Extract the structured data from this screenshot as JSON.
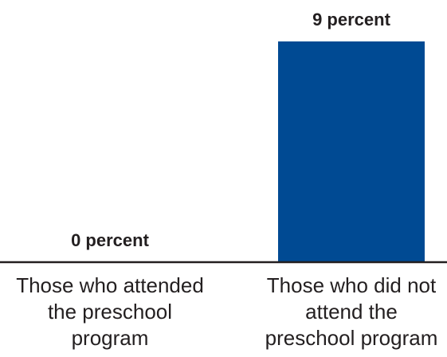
{
  "chart_data": {
    "type": "bar",
    "categories": [
      [
        "Those who attended",
        "the preschool",
        "program"
      ],
      [
        "Those who did not",
        "attend the",
        "preschool program"
      ]
    ],
    "values": [
      0,
      9
    ],
    "value_labels": [
      "0 percent",
      "9 percent"
    ],
    "unit": "percent",
    "ylim": [
      0,
      9
    ],
    "grid": false,
    "legend": "none",
    "colors": {
      "bar": "#004a93",
      "baseline": "#231f20",
      "text": "#231f20"
    }
  }
}
